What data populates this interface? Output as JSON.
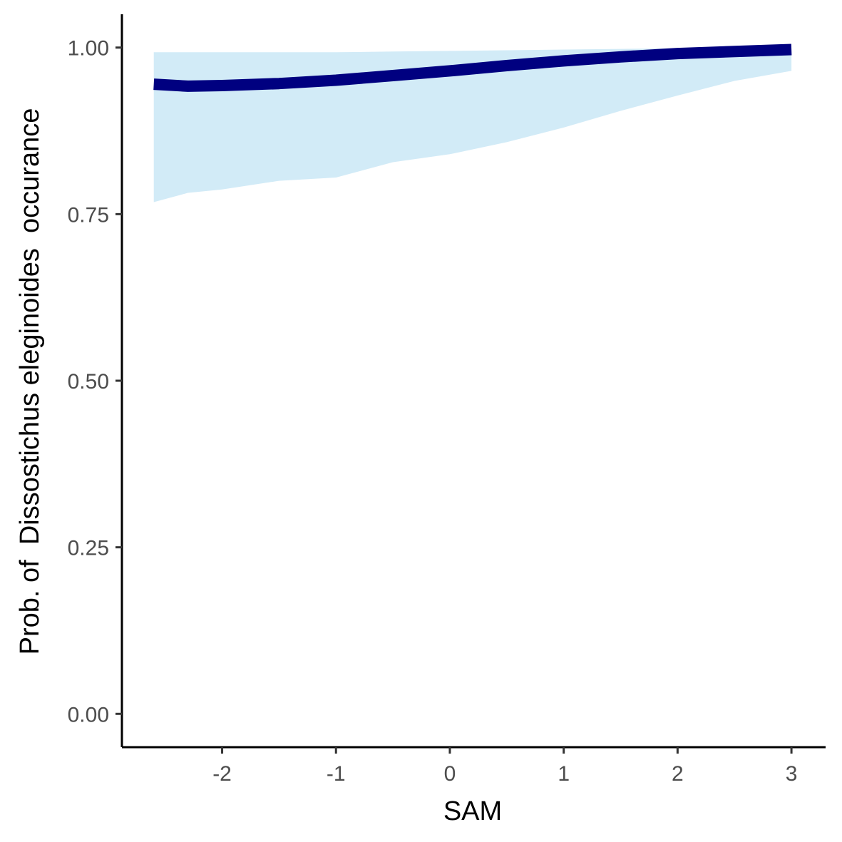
{
  "chart_data": {
    "type": "line",
    "title": "",
    "xlabel": "SAM",
    "ylabel": "Prob. of  Dissostichus eleginoides  occurance",
    "xlim": [
      -2.88,
      3.3
    ],
    "ylim": [
      -0.05,
      1.05
    ],
    "x_ticks": [
      -2,
      -1,
      0,
      1,
      2,
      3
    ],
    "x_tick_labels": [
      "-2",
      "-1",
      "0",
      "1",
      "2",
      "3"
    ],
    "y_ticks": [
      0,
      0.25,
      0.5,
      0.75,
      1.0
    ],
    "y_tick_labels": [
      "0.00",
      "0.25",
      "0.50",
      "0.75",
      "1.00"
    ],
    "grid": false,
    "colors": {
      "line": "#000080",
      "ribbon": "#d2ebf7",
      "axis": "#000000",
      "tick_label": "#4d4d4d"
    },
    "series": [
      {
        "x": [
          -2.6,
          -2.3,
          -2.0,
          -1.5,
          -1.0,
          -0.5,
          0.0,
          0.5,
          1.0,
          1.5,
          2.0,
          2.5,
          3.0
        ],
        "y": [
          0.945,
          0.942,
          0.943,
          0.946,
          0.951,
          0.958,
          0.965,
          0.973,
          0.98,
          0.986,
          0.991,
          0.994,
          0.997
        ],
        "lower": [
          0.768,
          0.782,
          0.787,
          0.8,
          0.805,
          0.828,
          0.84,
          0.858,
          0.88,
          0.905,
          0.928,
          0.95,
          0.965
        ],
        "upper": [
          0.993,
          0.993,
          0.993,
          0.993,
          0.993,
          0.994,
          0.995,
          0.996,
          0.997,
          0.998,
          0.999,
          0.999,
          1.0
        ]
      }
    ]
  }
}
